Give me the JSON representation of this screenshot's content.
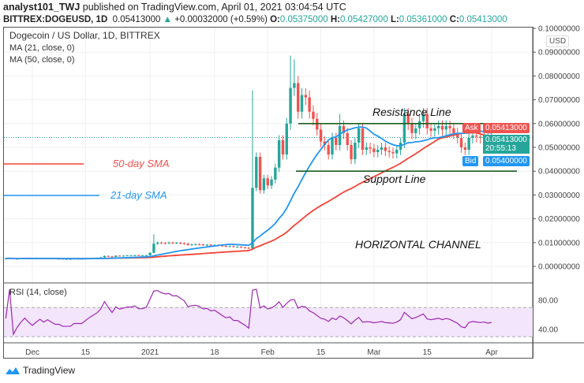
{
  "header": {
    "author": "analyst101_TWJ",
    "published": "published on TradingView.com, April 01, 2021 03:04:54 UTC",
    "symbol": "BITTREX:DOGEUSD, 1D",
    "last": "0.05413000",
    "change": "+0.00032000 (+0.59%)",
    "o_label": "O:",
    "o": "0.05375000",
    "h_label": "H:",
    "h": "0.05427000",
    "l_label": "L:",
    "l": "0.05361000",
    "c_label": "C:",
    "c": "0.05413000"
  },
  "legend": {
    "title": "Dogecoin / US Dollar, 1D, BITTREX",
    "ma21": "MA (21, close, 0)",
    "ma50": "MA (50, close, 0)",
    "rsi": "RSI (14, close)"
  },
  "annotations": {
    "resistance": "Resistance Line",
    "support": "Support Line",
    "channel": "HORIZONTAL CHANNEL",
    "sma50": "50-day SMA",
    "sma21": "21-day SMA"
  },
  "price_tags": {
    "currency": "USD",
    "ask_label": "Ask",
    "ask": "0.05413000",
    "last": "0.05413000",
    "countdown": "20:55:13",
    "bid_label": "Bid",
    "bid": "0.05400000"
  },
  "brand": "TradingView",
  "colors": {
    "up": "#26a69a",
    "down": "#ef5350",
    "ma21": "#2196f3",
    "ma50": "#f44336",
    "rsi": "#9c27b0",
    "rsi_band": "#f3e5fc",
    "trendline": "#1b5e20",
    "ask": "#ef5350",
    "bid": "#2196f3"
  },
  "chart_data": {
    "type": "candlestick",
    "start_date": "2020-11-24",
    "end_date": "2021-04-01",
    "x_tick_labels": [
      "Dec",
      "15",
      "2021",
      "18",
      "Feb",
      "15",
      "Mar",
      "15",
      "Apr"
    ],
    "x_tick_dates": [
      "2020-12-01",
      "2020-12-15",
      "2021-01-01",
      "2021-01-18",
      "2021-02-01",
      "2021-02-15",
      "2021-03-01",
      "2021-03-15",
      "2021-04-01"
    ],
    "y_ticks": [
      "0.00000000",
      "0.01000000",
      "0.02000000",
      "0.03000000",
      "0.04000000",
      "0.05000000",
      "0.06000000",
      "0.07000000",
      "0.08000000",
      "0.09000000",
      "0.10000000"
    ],
    "ylim": [
      0,
      0.1
    ],
    "close": [
      0.0033,
      0.0035,
      0.0031,
      0.0032,
      0.0033,
      0.0034,
      0.0033,
      0.0032,
      0.0033,
      0.0034,
      0.0033,
      0.0034,
      0.0033,
      0.0032,
      0.0032,
      0.0031,
      0.0031,
      0.0031,
      0.0032,
      0.0032,
      0.0032,
      0.0033,
      0.0034,
      0.0035,
      0.0036,
      0.0038,
      0.0044,
      0.0042,
      0.004,
      0.0045,
      0.0044,
      0.0045,
      0.0046,
      0.0046,
      0.0047,
      0.0046,
      0.0046,
      0.0047,
      0.0057,
      0.0095,
      0.01,
      0.0098,
      0.0097,
      0.01,
      0.0098,
      0.0099,
      0.0097,
      0.0095,
      0.009,
      0.0092,
      0.0093,
      0.0092,
      0.009,
      0.0091,
      0.0089,
      0.009,
      0.0088,
      0.0086,
      0.0084,
      0.0085,
      0.0082,
      0.0082,
      0.008,
      0.0078,
      0.0075,
      0.033,
      0.046,
      0.032,
      0.037,
      0.034,
      0.0365,
      0.0415,
      0.053,
      0.047,
      0.06,
      0.075,
      0.077,
      0.065,
      0.072,
      0.071,
      0.065,
      0.062,
      0.0575,
      0.0525,
      0.051,
      0.047,
      0.054,
      0.051,
      0.059,
      0.056,
      0.051,
      0.045,
      0.052,
      0.058,
      0.049,
      0.05,
      0.0495,
      0.048,
      0.049,
      0.05,
      0.0485,
      0.048,
      0.0475,
      0.049,
      0.052,
      0.064,
      0.06,
      0.056,
      0.058,
      0.061,
      0.064,
      0.058,
      0.057,
      0.058,
      0.059,
      0.0575,
      0.059,
      0.058,
      0.056,
      0.054,
      0.05,
      0.049,
      0.054,
      0.055,
      0.0545,
      0.054,
      0.0545,
      0.0535,
      0.05413
    ],
    "notable_highs": {
      "2021-01-02": 0.0135,
      "2021-01-28": 0.074,
      "2021-02-07": 0.0885,
      "2021-02-08": 0.087,
      "2021-02-20": 0.064
    },
    "indicators": [
      "MA 21 close",
      "MA 50 close",
      "RSI 14 close"
    ],
    "rsi_levels": [
      30,
      70
    ],
    "rsi_ticks": [
      "40.00",
      "80.00"
    ],
    "resistance_level": 0.06,
    "support_level": 0.04
  }
}
